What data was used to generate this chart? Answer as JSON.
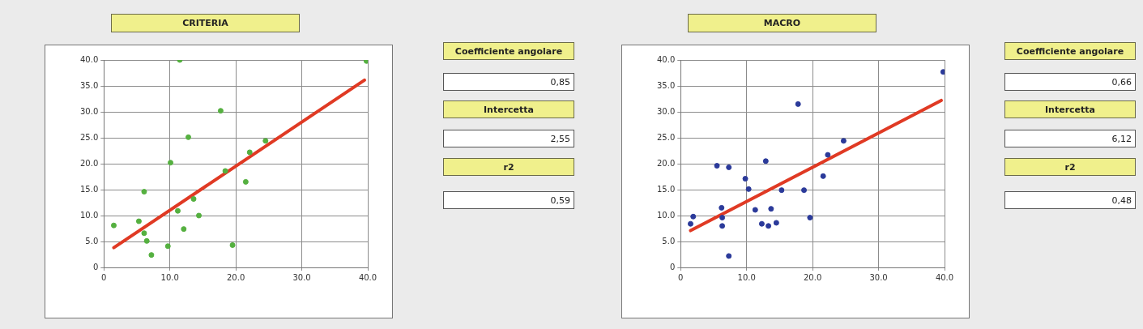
{
  "chart_data": [
    {
      "type": "scatter",
      "title": "CRITERIA",
      "xlim": [
        0,
        40
      ],
      "ylim": [
        0,
        40
      ],
      "grid": true,
      "legend": false,
      "xticks": [
        0,
        {
          "value": 10,
          "label": "10.0"
        },
        {
          "value": 20,
          "label": "20.0"
        },
        {
          "value": 30,
          "label": "30.0"
        },
        {
          "value": 40,
          "label": "40.0"
        }
      ],
      "yticks": [
        0,
        {
          "value": 5,
          "label": "5.0"
        },
        {
          "value": 10,
          "label": "10.0"
        },
        {
          "value": 15,
          "label": "15.0"
        },
        {
          "value": 20,
          "label": "20.0"
        },
        {
          "value": 25,
          "label": "25.0"
        },
        {
          "value": 30,
          "label": "30.0"
        },
        {
          "value": 35,
          "label": "35.0"
        },
        {
          "value": 40,
          "label": "40.0"
        }
      ],
      "series": [
        {
          "type": "scatter",
          "marker": "circle",
          "color": "#55b040",
          "x": [
            1.5,
            5.3,
            6.1,
            6.1,
            6.5,
            7.2,
            9.7,
            10.1,
            11.2,
            11.5,
            12.1,
            12.8,
            13.6,
            14.4,
            17.7,
            18.4,
            19.5,
            21.5,
            22.1,
            24.5,
            39.8
          ],
          "values": [
            8.1,
            8.9,
            14.6,
            6.6,
            5.1,
            2.4,
            4.1,
            20.2,
            10.9,
            40,
            7.4,
            25.1,
            13.2,
            10.0,
            30.2,
            18.6,
            4.3,
            16.5,
            22.2,
            24.4,
            39.8
          ]
        },
        {
          "type": "line",
          "marker": "none",
          "color": "#e03a24",
          "x": [
            1.5,
            39.5
          ],
          "values": [
            3.8,
            36.1
          ]
        }
      ]
    },
    {
      "type": "other",
      "annotations": [
        "Coefficiente angolare",
        "0,85",
        "Intercetta",
        "2,55",
        "r2",
        "0,59"
      ]
    },
    {
      "type": "scatter",
      "title": "MACRO",
      "xlim": [
        0,
        40
      ],
      "ylim": [
        0,
        40
      ],
      "grid": true,
      "legend": false,
      "xticks": [
        0,
        {
          "value": 10,
          "label": "10.0"
        },
        {
          "value": 20,
          "label": "20.0"
        },
        {
          "value": 30,
          "label": "30.0"
        },
        {
          "value": 40,
          "label": "40.0"
        }
      ],
      "yticks": [
        0,
        {
          "value": 5,
          "label": "5.0"
        },
        {
          "value": 10,
          "label": "10.0"
        },
        {
          "value": 15,
          "label": "15.0"
        },
        {
          "value": 20,
          "label": "20.0"
        },
        {
          "value": 25,
          "label": "25.0"
        },
        {
          "value": 30,
          "label": "30.0"
        },
        {
          "value": 35,
          "label": "35.0"
        },
        {
          "value": 40,
          "label": "40.0"
        }
      ],
      "series": [
        {
          "type": "scatter",
          "marker": "circle",
          "color": "#2b3a9a",
          "x": [
            1.5,
            1.9,
            5.5,
            6.2,
            6.3,
            6.3,
            7.3,
            7.3,
            9.8,
            10.3,
            11.3,
            12.3,
            12.9,
            13.3,
            13.7,
            14.5,
            15.3,
            17.8,
            18.7,
            19.6,
            21.6,
            22.3,
            24.7,
            39.8
          ],
          "values": [
            8.4,
            9.8,
            19.6,
            11.5,
            9.6,
            8.0,
            19.3,
            2.2,
            17.1,
            15.1,
            11.1,
            8.4,
            20.5,
            8.0,
            11.3,
            8.6,
            14.9,
            31.5,
            14.9,
            9.6,
            17.6,
            21.7,
            24.4,
            37.7
          ]
        },
        {
          "type": "line",
          "marker": "none",
          "color": "#e03a24",
          "x": [
            1.5,
            39.5
          ],
          "values": [
            7.1,
            32.2
          ]
        }
      ]
    },
    {
      "type": "other",
      "annotations": [
        "Coefficiente angolare",
        "0,66",
        "Intercetta",
        "6,12",
        "r2",
        "0,48"
      ]
    }
  ]
}
